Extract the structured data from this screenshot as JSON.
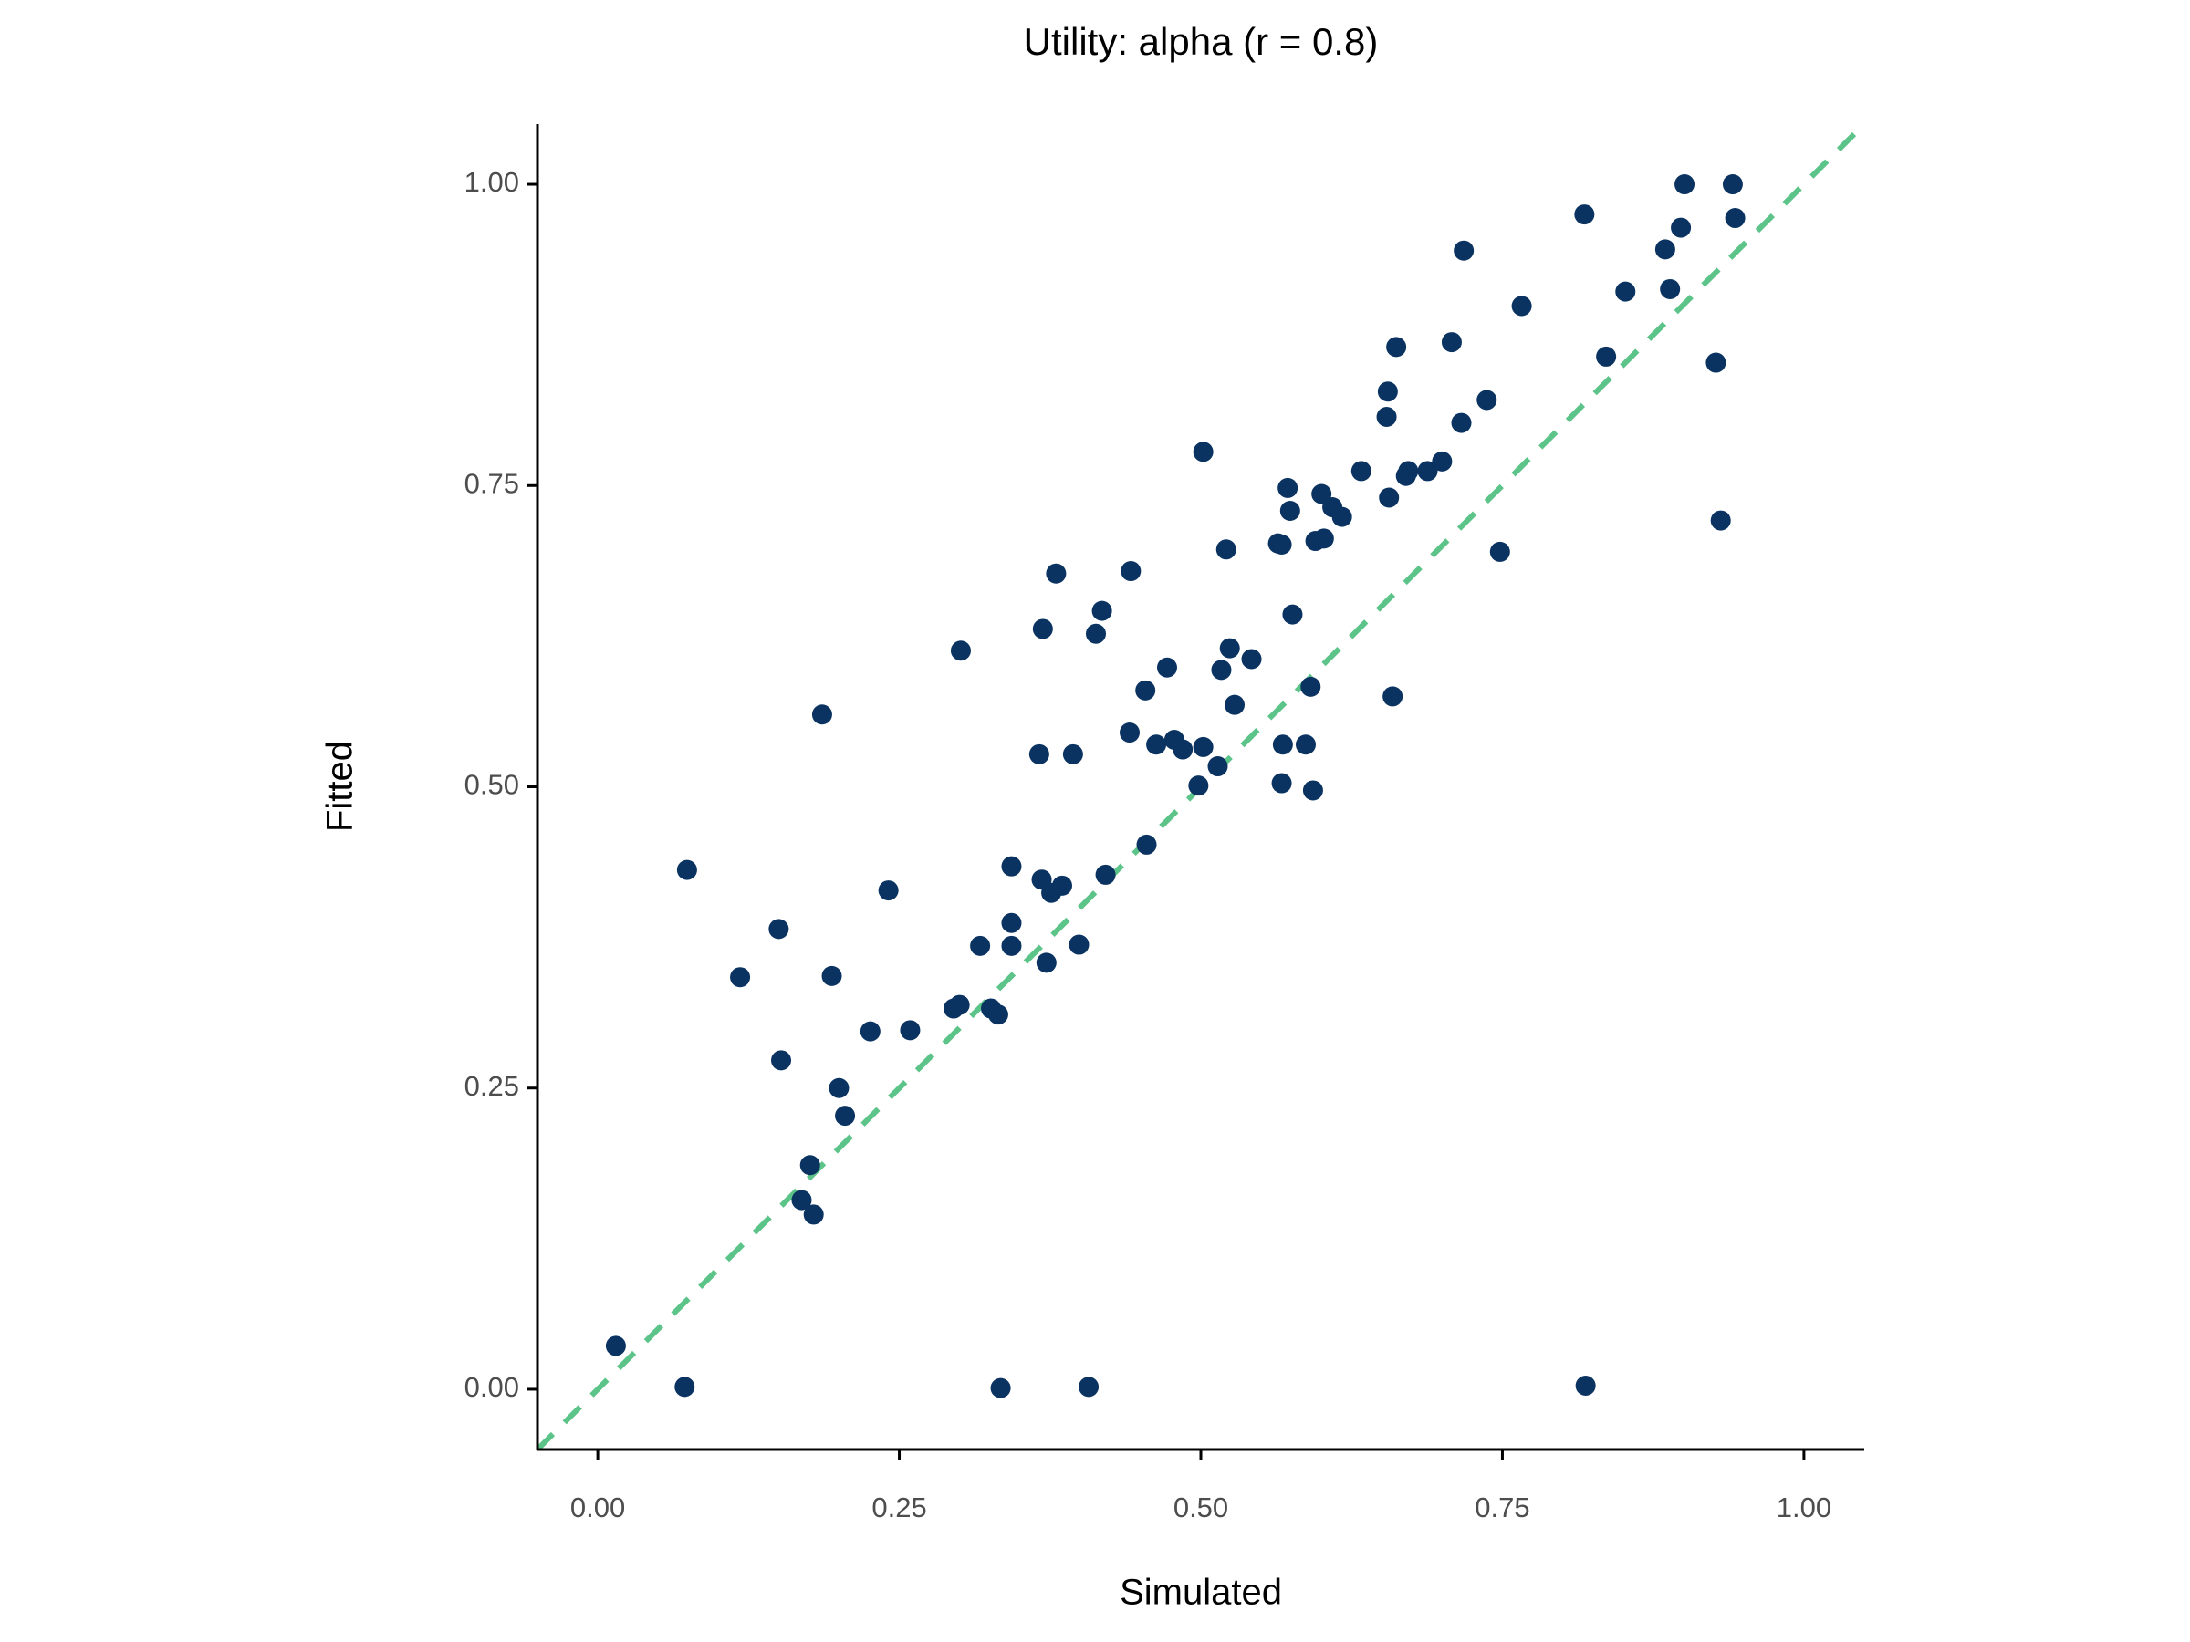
{
  "chart_data": {
    "type": "scatter",
    "title": "Utility: alpha (r = 0.8)",
    "x_label": "Simulated",
    "y_label": "Fitted",
    "color": "#0b3361",
    "identity_line": true,
    "identity_line_color": "#5cc488",
    "xlim": [
      -0.05,
      1.05
    ],
    "ylim": [
      -0.05,
      1.05
    ],
    "xticks": [
      {
        "value": 0,
        "label": "0.00"
      },
      {
        "value": 0.25,
        "label": "0.25"
      },
      {
        "value": 0.5,
        "label": "0.50"
      },
      {
        "value": 0.75,
        "label": "0.75"
      },
      {
        "value": 1,
        "label": "1.00"
      }
    ],
    "yticks": [
      {
        "value": 0,
        "label": "0.00"
      },
      {
        "value": 0.25,
        "label": "0.25"
      },
      {
        "value": 0.5,
        "label": "0.50"
      },
      {
        "value": 0.75,
        "label": "0.75"
      },
      {
        "value": 1,
        "label": "1.00"
      }
    ],
    "x": [
      0.015,
      0.072,
      0.074,
      0.118,
      0.15,
      0.152,
      0.186,
      0.194,
      0.169,
      0.176,
      0.179,
      0.2,
      0.205,
      0.226,
      0.241,
      0.259,
      0.301,
      0.295,
      0.3,
      0.317,
      0.326,
      0.332,
      0.334,
      0.343,
      0.343,
      0.343,
      0.366,
      0.369,
      0.368,
      0.372,
      0.376,
      0.38,
      0.385,
      0.394,
      0.399,
      0.407,
      0.413,
      0.418,
      0.421,
      0.441,
      0.442,
      0.454,
      0.455,
      0.463,
      0.472,
      0.478,
      0.485,
      0.498,
      0.502,
      0.502,
      0.514,
      0.517,
      0.521,
      0.524,
      0.528,
      0.542,
      0.564,
      0.567,
      0.567,
      0.568,
      0.572,
      0.574,
      0.576,
      0.587,
      0.591,
      0.593,
      0.595,
      0.6,
      0.602,
      0.609,
      0.617,
      0.633,
      0.654,
      0.655,
      0.656,
      0.659,
      0.662,
      0.67,
      0.672,
      0.688,
      0.7,
      0.708,
      0.716,
      0.718,
      0.737,
      0.748,
      0.766,
      0.818,
      0.819,
      0.836,
      0.852,
      0.885,
      0.889,
      0.898,
      0.901,
      0.927,
      0.931,
      0.941,
      0.943
    ],
    "values": [
      0.036,
      0.002,
      0.431,
      0.342,
      0.382,
      0.273,
      0.56,
      0.343,
      0.157,
      0.186,
      0.145,
      0.25,
      0.227,
      0.297,
      0.414,
      0.298,
      0.613,
      0.316,
      0.319,
      0.368,
      0.316,
      0.311,
      0.001,
      0.434,
      0.387,
      0.368,
      0.527,
      0.631,
      0.423,
      0.354,
      0.412,
      0.677,
      0.418,
      0.527,
      0.369,
      0.002,
      0.627,
      0.646,
      0.427,
      0.545,
      0.679,
      0.58,
      0.452,
      0.535,
      0.599,
      0.539,
      0.531,
      0.501,
      0.778,
      0.533,
      0.517,
      0.597,
      0.697,
      0.615,
      0.568,
      0.606,
      0.702,
      0.701,
      0.503,
      0.535,
      0.748,
      0.729,
      0.643,
      0.535,
      0.583,
      0.497,
      0.704,
      0.743,
      0.706,
      0.732,
      0.724,
      0.762,
      0.807,
      0.828,
      0.74,
      0.575,
      0.865,
      0.758,
      0.762,
      0.762,
      0.77,
      0.869,
      0.802,
      0.945,
      0.821,
      0.695,
      0.899,
      0.975,
      0.003,
      0.857,
      0.911,
      0.946,
      0.913,
      0.964,
      1.0,
      0.852,
      0.721,
      1.0,
      0.972
    ]
  }
}
